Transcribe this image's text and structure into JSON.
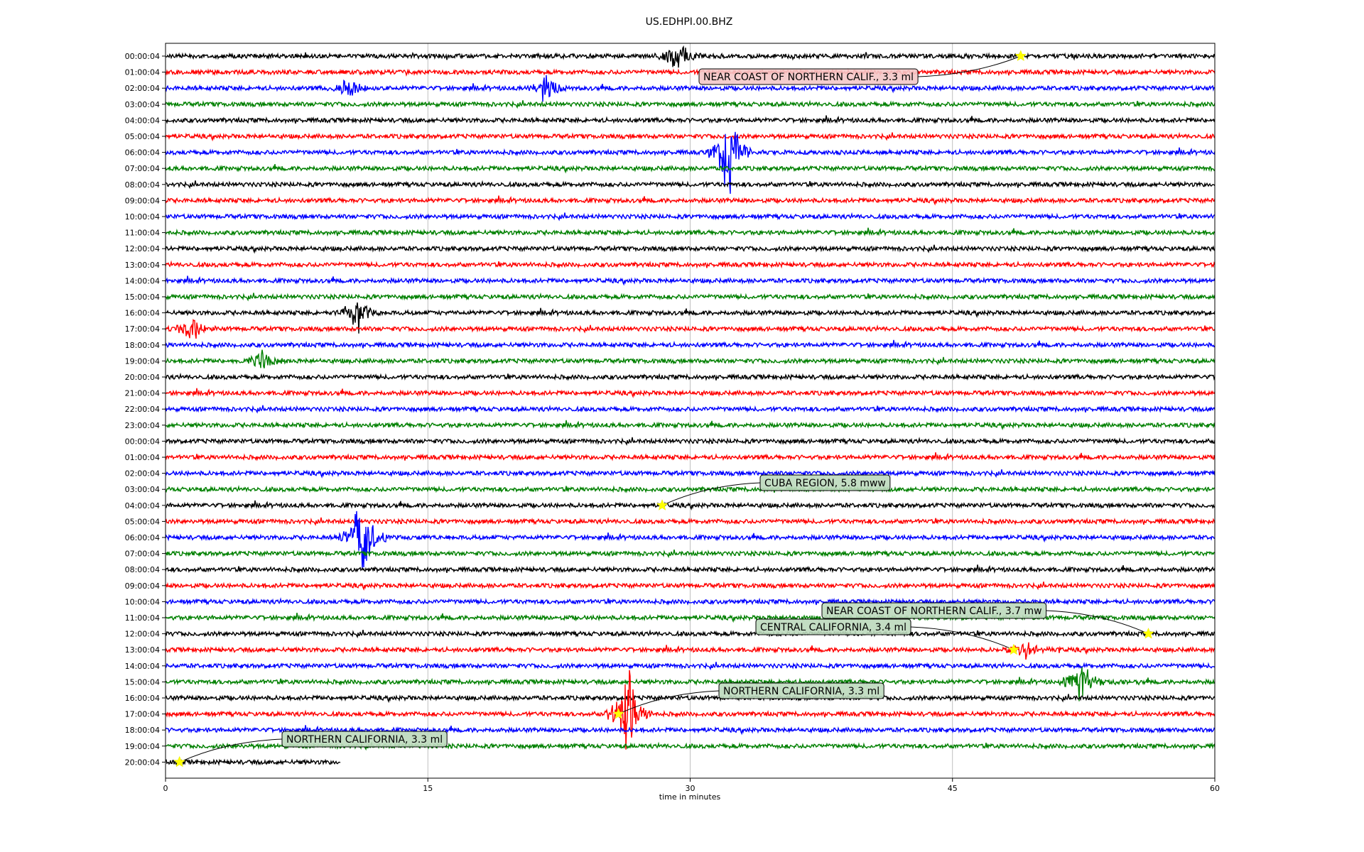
{
  "chart_data": {
    "type": "line",
    "title": "US.EDHPI.00.BHZ",
    "xlabel": "time in minutes",
    "ylabel": "",
    "xlim": [
      0,
      60
    ],
    "x_ticks": [
      0,
      15,
      30,
      45,
      60
    ],
    "grid": "vertical at x ticks",
    "color_cycle": [
      "#000000",
      "#ff0000",
      "#0000ff",
      "#008000"
    ],
    "row_labels": [
      "00:00:04",
      "01:00:04",
      "02:00:04",
      "03:00:04",
      "04:00:04",
      "05:00:04",
      "06:00:04",
      "07:00:04",
      "08:00:04",
      "09:00:04",
      "10:00:04",
      "11:00:04",
      "12:00:04",
      "13:00:04",
      "14:00:04",
      "15:00:04",
      "16:00:04",
      "17:00:04",
      "18:00:04",
      "19:00:04",
      "20:00:04",
      "21:00:04",
      "22:00:04",
      "23:00:04",
      "00:00:04",
      "01:00:04",
      "02:00:04",
      "03:00:04",
      "04:00:04",
      "05:00:04",
      "06:00:04",
      "07:00:04",
      "08:00:04",
      "09:00:04",
      "10:00:04",
      "11:00:04",
      "12:00:04",
      "13:00:04",
      "14:00:04",
      "15:00:04",
      "16:00:04",
      "17:00:04",
      "18:00:04",
      "19:00:04",
      "20:00:04"
    ],
    "last_row_end_minute": 10,
    "bursts": [
      {
        "row": 0,
        "minute": 29.3,
        "amplitude": 1.0
      },
      {
        "row": 2,
        "minute": 10.5,
        "amplitude": 0.8
      },
      {
        "row": 2,
        "minute": 21.8,
        "amplitude": 0.8
      },
      {
        "row": 6,
        "minute": 32.2,
        "amplitude": 2.8
      },
      {
        "row": 16,
        "minute": 11.0,
        "amplitude": 1.3
      },
      {
        "row": 17,
        "minute": 1.5,
        "amplitude": 0.7
      },
      {
        "row": 19,
        "minute": 5.5,
        "amplitude": 0.6
      },
      {
        "row": 30,
        "minute": 11.3,
        "amplitude": 3.0
      },
      {
        "row": 39,
        "minute": 52.3,
        "amplitude": 1.5
      },
      {
        "row": 41,
        "minute": 26.4,
        "amplitude": 3.2
      },
      {
        "row": 37,
        "minute": 49.2,
        "amplitude": 0.6
      }
    ],
    "events": [
      {
        "label": "NEAR COAST OF NORTHERN CALIF., 3.3 ml",
        "row": 0,
        "minute": 48.9,
        "box_color": "#f4c8c8"
      },
      {
        "label": "CUBA REGION, 5.8 mww",
        "row": 28,
        "minute": 28.4,
        "box_color": "#bcd9bc"
      },
      {
        "label": "NEAR COAST OF NORTHERN CALIF., 3.7 mw",
        "row": 36,
        "minute": 56.2,
        "box_color": "#bcd9bc"
      },
      {
        "label": "CENTRAL CALIFORNIA, 3.4 ml",
        "row": 37,
        "minute": 48.5,
        "box_color": "#bcd9bc"
      },
      {
        "label": "NORTHERN CALIFORNIA, 3.3 ml",
        "row": 41,
        "minute": 25.9,
        "box_color": "#bcd9bc"
      },
      {
        "label": "NORTHERN CALIFORNIA, 3.3 ml",
        "row": 44,
        "minute": 0.8,
        "box_color": "#bcd9bc"
      }
    ]
  }
}
